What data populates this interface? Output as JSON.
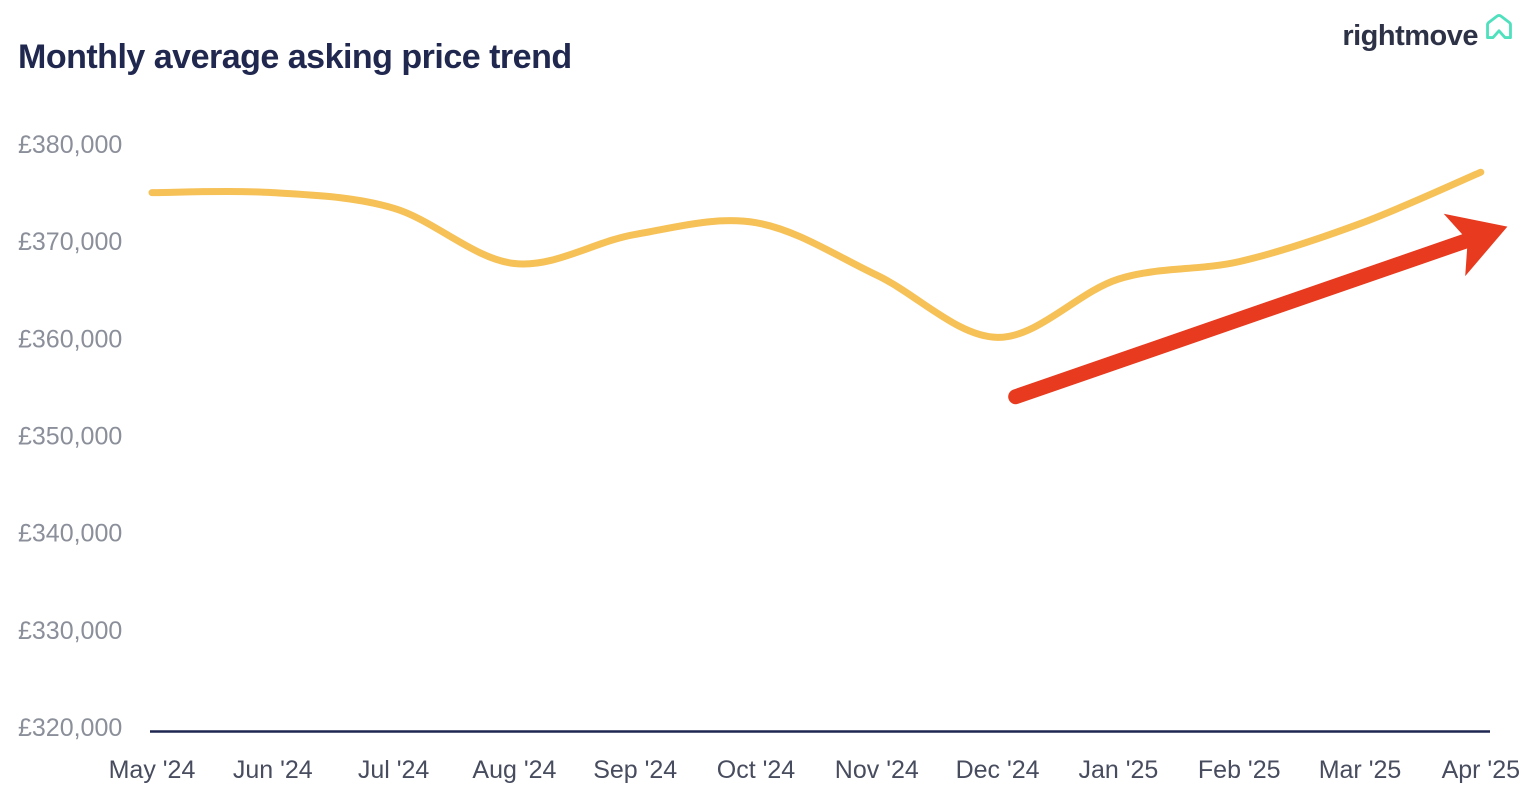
{
  "header": {
    "title": "Monthly average asking price trend",
    "logo": {
      "text": "rightmove",
      "icon": "rightmove-house-icon",
      "text_color": "#2e3247",
      "icon_color": "#4fe0bd"
    }
  },
  "chart_data": {
    "type": "line",
    "title": "Monthly average asking price trend",
    "categories": [
      "May '24",
      "Jun '24",
      "Jul '24",
      "Aug '24",
      "Sep '24",
      "Oct '24",
      "Nov '24",
      "Dec '24",
      "Jan '25",
      "Feb '25",
      "Mar '25",
      "Apr '25"
    ],
    "series": [
      {
        "name": "Monthly average asking price",
        "color": "#f6c157",
        "values": [
          375100,
          375100,
          373500,
          367800,
          370800,
          372000,
          366600,
          360200,
          366200,
          368000,
          371900,
          377200
        ]
      }
    ],
    "xlabel": "",
    "ylabel": "",
    "ylim": [
      320000,
      380000
    ],
    "y_tick_interval": 10000,
    "y_tick_labels": [
      "£380,000",
      "£370,000",
      "£360,000",
      "£350,000",
      "£340,000",
      "£330,000",
      "£320,000"
    ],
    "currency": "GBP",
    "grid": false,
    "legend": "none",
    "axis_line_color": "#1f2650",
    "annotations": [
      {
        "type": "arrow",
        "name": "upward-trend-arrow",
        "meaning": "prices rising",
        "color": "#e73a1e",
        "from": {
          "month_index": 7.15,
          "value": 354100
        },
        "to": {
          "month_index": 11.22,
          "value": 371600
        }
      }
    ]
  }
}
